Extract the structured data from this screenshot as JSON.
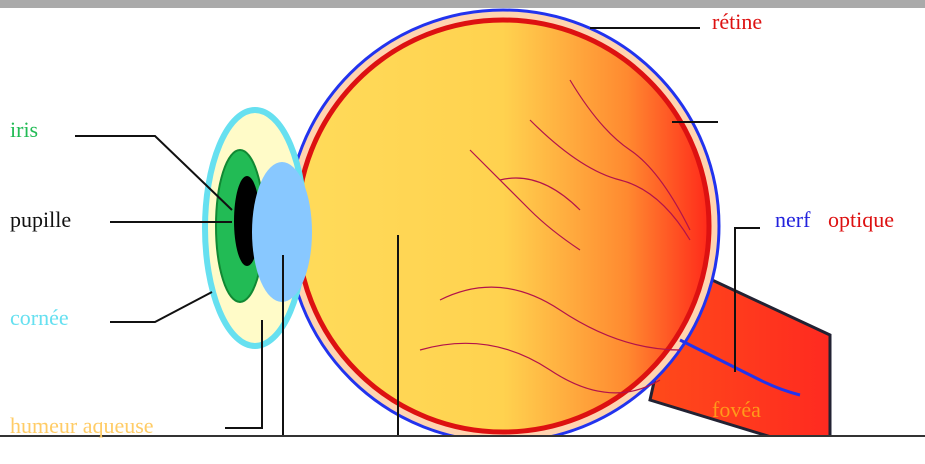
{
  "labels": {
    "iris": "iris",
    "pupil": "pupille",
    "cornea": "cornée",
    "aqueous": "humeur aqueuse",
    "retina": "rétine",
    "nerve": "nerf",
    "optic": "optique",
    "fovea": "fovéa"
  }
}
